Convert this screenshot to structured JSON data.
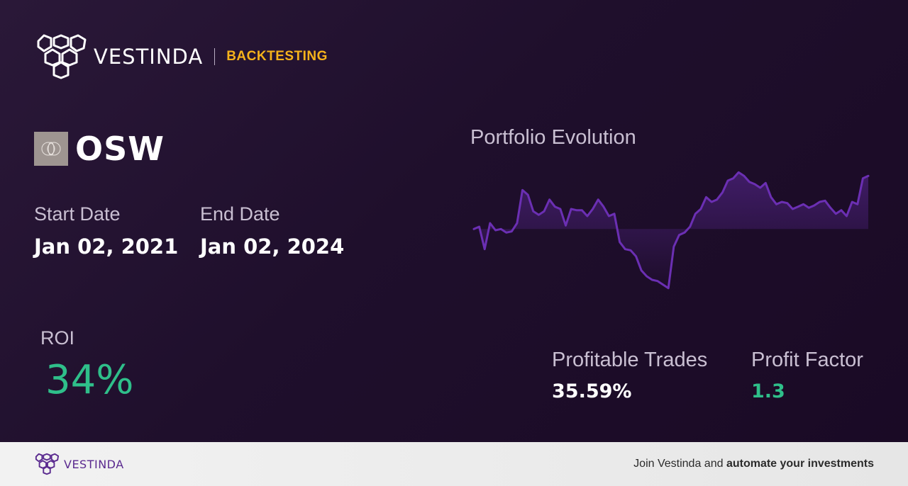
{
  "header": {
    "brand": "VESTINDA",
    "tag": "BACKTESTING",
    "brand_color": "#ffffff",
    "tag_color": "#f5b21b"
  },
  "ticker": {
    "symbol": "OSW",
    "icon": "ticker-logo-icon"
  },
  "dates": {
    "start_label": "Start Date",
    "start_value": "Jan 02, 2021",
    "end_label": "End Date",
    "end_value": "Jan 02, 2024"
  },
  "roi": {
    "label": "ROI",
    "value": "34%",
    "color": "#2fbf8a"
  },
  "chart": {
    "title": "Portfolio Evolution",
    "line_color": "#6b2fb3"
  },
  "chart_data": {
    "type": "line",
    "title": "Portfolio Evolution",
    "xlabel": "",
    "ylabel": "",
    "grid": false,
    "legend": "none",
    "ylim": [
      0,
      100
    ],
    "series": [
      {
        "values": [
          55,
          57,
          38,
          60,
          54,
          55,
          52,
          53,
          60,
          88,
          84,
          70,
          67,
          70,
          80,
          74,
          72,
          58,
          72,
          71,
          71,
          66,
          72,
          80,
          74,
          66,
          68,
          44,
          38,
          37,
          32,
          20,
          15,
          12,
          11,
          8,
          5,
          40,
          50,
          52,
          57,
          68,
          72,
          82,
          78,
          80,
          86,
          96,
          98,
          103,
          100,
          95,
          93,
          90,
          94,
          82,
          76,
          78,
          77,
          72,
          74,
          76,
          73,
          75,
          78,
          79,
          73,
          68,
          71,
          66,
          78,
          76,
          98,
          100
        ]
      }
    ]
  },
  "stats": {
    "profitable_trades_label": "Profitable Trades",
    "profitable_trades_value": "35.59%",
    "profit_factor_label": "Profit Factor",
    "profit_factor_value": "1.3",
    "profit_factor_color": "#2fbf8a"
  },
  "footer": {
    "brand": "VESTINDA",
    "cta_prefix": "Join Vestinda and ",
    "cta_bold": "automate your investments"
  }
}
